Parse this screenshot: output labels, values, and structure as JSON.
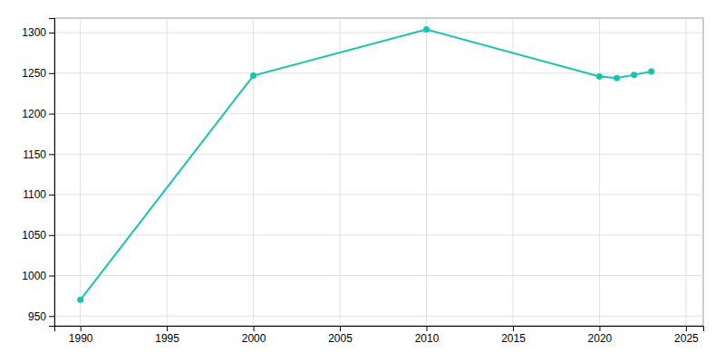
{
  "chart_data": {
    "type": "line",
    "x": [
      1990,
      2000,
      2010,
      2020,
      2021,
      2022,
      2023
    ],
    "values": [
      970,
      1247,
      1304,
      1246,
      1244,
      1248,
      1252
    ],
    "color": "#17c3b2",
    "marker": "circle",
    "xlim": [
      1988.5,
      2026
    ],
    "ylim": [
      938,
      1318
    ],
    "xticks": [
      1990,
      1995,
      2000,
      2005,
      2010,
      2015,
      2020,
      2025
    ],
    "yticks": [
      950,
      1000,
      1050,
      1100,
      1150,
      1200,
      1250,
      1300
    ],
    "grid": true
  }
}
